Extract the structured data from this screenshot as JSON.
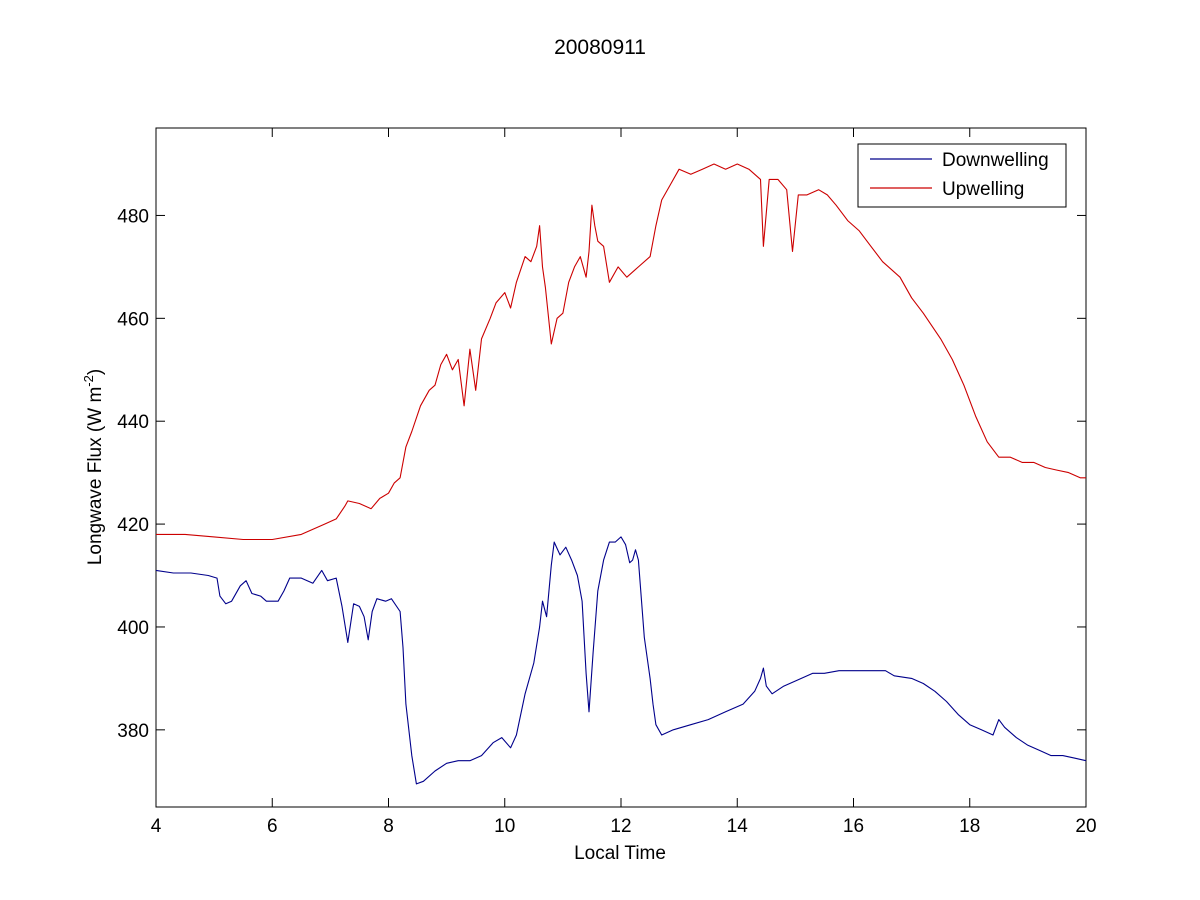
{
  "chart_data": {
    "type": "line",
    "title": "20080911",
    "xlabel": "Local Time",
    "ylabel_main": "Longwave Flux (W m",
    "ylabel_sup": "-2",
    "ylabel_close": ")",
    "xlim": [
      4,
      20
    ],
    "ylim": [
      365,
      497
    ],
    "xticks": [
      4,
      6,
      8,
      10,
      12,
      14,
      16,
      18,
      20
    ],
    "yticks": [
      380,
      400,
      420,
      440,
      460,
      480
    ],
    "grid": false,
    "legend_position": "top-right",
    "series": [
      {
        "name": "Downwelling",
        "color": "#00008b",
        "points": [
          [
            4.0,
            411
          ],
          [
            4.3,
            410.5
          ],
          [
            4.6,
            410.5
          ],
          [
            4.9,
            410
          ],
          [
            5.05,
            409.5
          ],
          [
            5.1,
            406
          ],
          [
            5.2,
            404.5
          ],
          [
            5.3,
            405
          ],
          [
            5.45,
            408
          ],
          [
            5.55,
            409
          ],
          [
            5.65,
            406.5
          ],
          [
            5.8,
            406
          ],
          [
            5.9,
            405
          ],
          [
            6.1,
            405
          ],
          [
            6.2,
            407
          ],
          [
            6.3,
            409.5
          ],
          [
            6.5,
            409.5
          ],
          [
            6.7,
            408.5
          ],
          [
            6.85,
            411
          ],
          [
            6.95,
            409
          ],
          [
            7.1,
            409.5
          ],
          [
            7.2,
            404
          ],
          [
            7.3,
            397
          ],
          [
            7.4,
            404.5
          ],
          [
            7.5,
            404
          ],
          [
            7.58,
            402
          ],
          [
            7.65,
            397.5
          ],
          [
            7.72,
            403
          ],
          [
            7.8,
            405.5
          ],
          [
            7.95,
            405
          ],
          [
            8.05,
            405.5
          ],
          [
            8.2,
            403
          ],
          [
            8.25,
            396
          ],
          [
            8.3,
            385
          ],
          [
            8.4,
            375
          ],
          [
            8.48,
            369.5
          ],
          [
            8.6,
            370
          ],
          [
            8.8,
            372
          ],
          [
            9.0,
            373.5
          ],
          [
            9.2,
            374
          ],
          [
            9.4,
            374
          ],
          [
            9.6,
            375
          ],
          [
            9.8,
            377.5
          ],
          [
            9.95,
            378.5
          ],
          [
            10.1,
            376.5
          ],
          [
            10.2,
            379
          ],
          [
            10.35,
            387
          ],
          [
            10.5,
            393
          ],
          [
            10.6,
            400
          ],
          [
            10.65,
            405
          ],
          [
            10.72,
            402
          ],
          [
            10.8,
            412
          ],
          [
            10.85,
            416.5
          ],
          [
            10.95,
            414
          ],
          [
            11.05,
            415.5
          ],
          [
            11.15,
            413
          ],
          [
            11.25,
            410
          ],
          [
            11.33,
            405
          ],
          [
            11.4,
            391
          ],
          [
            11.45,
            383.5
          ],
          [
            11.52,
            395
          ],
          [
            11.6,
            407
          ],
          [
            11.7,
            413
          ],
          [
            11.8,
            416.5
          ],
          [
            11.9,
            416.5
          ],
          [
            12.0,
            417.5
          ],
          [
            12.08,
            416
          ],
          [
            12.15,
            412.5
          ],
          [
            12.2,
            413
          ],
          [
            12.25,
            415
          ],
          [
            12.3,
            413
          ],
          [
            12.4,
            398
          ],
          [
            12.5,
            390
          ],
          [
            12.55,
            385
          ],
          [
            12.6,
            381
          ],
          [
            12.7,
            379
          ],
          [
            12.9,
            380
          ],
          [
            13.2,
            381
          ],
          [
            13.5,
            382
          ],
          [
            13.8,
            383.5
          ],
          [
            14.1,
            385
          ],
          [
            14.3,
            387.5
          ],
          [
            14.4,
            390
          ],
          [
            14.45,
            392
          ],
          [
            14.5,
            388.5
          ],
          [
            14.6,
            387
          ],
          [
            14.8,
            388.5
          ],
          [
            15.0,
            389.5
          ],
          [
            15.3,
            391
          ],
          [
            15.5,
            391
          ],
          [
            15.75,
            391.5
          ],
          [
            16.0,
            391.5
          ],
          [
            16.3,
            391.5
          ],
          [
            16.55,
            391.5
          ],
          [
            16.7,
            390.5
          ],
          [
            17.0,
            390
          ],
          [
            17.2,
            389
          ],
          [
            17.4,
            387.5
          ],
          [
            17.6,
            385.5
          ],
          [
            17.8,
            383
          ],
          [
            18.0,
            381
          ],
          [
            18.2,
            380
          ],
          [
            18.4,
            379
          ],
          [
            18.5,
            382
          ],
          [
            18.6,
            380.5
          ],
          [
            18.8,
            378.5
          ],
          [
            19.0,
            377
          ],
          [
            19.2,
            376
          ],
          [
            19.4,
            375
          ],
          [
            19.6,
            375
          ],
          [
            19.8,
            374.5
          ],
          [
            20.0,
            374
          ]
        ]
      },
      {
        "name": "Upwelling",
        "color": "#cc0000",
        "points": [
          [
            4.0,
            418
          ],
          [
            4.5,
            418
          ],
          [
            5.0,
            417.5
          ],
          [
            5.5,
            417
          ],
          [
            6.0,
            417
          ],
          [
            6.5,
            418
          ],
          [
            6.9,
            420
          ],
          [
            7.1,
            421
          ],
          [
            7.25,
            423.5
          ],
          [
            7.3,
            424.5
          ],
          [
            7.5,
            424
          ],
          [
            7.7,
            423
          ],
          [
            7.85,
            425
          ],
          [
            8.0,
            426
          ],
          [
            8.1,
            428
          ],
          [
            8.2,
            429
          ],
          [
            8.3,
            435
          ],
          [
            8.4,
            438
          ],
          [
            8.55,
            443
          ],
          [
            8.7,
            446
          ],
          [
            8.8,
            447
          ],
          [
            8.9,
            451
          ],
          [
            9.0,
            453
          ],
          [
            9.1,
            450
          ],
          [
            9.2,
            452
          ],
          [
            9.3,
            443
          ],
          [
            9.4,
            454
          ],
          [
            9.5,
            446
          ],
          [
            9.6,
            456
          ],
          [
            9.75,
            460
          ],
          [
            9.85,
            463
          ],
          [
            10.0,
            465
          ],
          [
            10.1,
            462
          ],
          [
            10.2,
            467
          ],
          [
            10.35,
            472
          ],
          [
            10.45,
            471
          ],
          [
            10.55,
            474
          ],
          [
            10.6,
            478
          ],
          [
            10.65,
            470
          ],
          [
            10.7,
            466
          ],
          [
            10.8,
            455
          ],
          [
            10.9,
            460
          ],
          [
            11.0,
            461
          ],
          [
            11.1,
            467
          ],
          [
            11.2,
            470
          ],
          [
            11.3,
            472
          ],
          [
            11.4,
            468
          ],
          [
            11.45,
            473
          ],
          [
            11.5,
            482
          ],
          [
            11.55,
            478
          ],
          [
            11.6,
            475
          ],
          [
            11.7,
            474
          ],
          [
            11.8,
            467
          ],
          [
            11.95,
            470
          ],
          [
            12.1,
            468
          ],
          [
            12.3,
            470
          ],
          [
            12.5,
            472
          ],
          [
            12.6,
            478
          ],
          [
            12.7,
            483
          ],
          [
            12.85,
            486
          ],
          [
            13.0,
            489
          ],
          [
            13.2,
            488
          ],
          [
            13.4,
            489
          ],
          [
            13.6,
            490
          ],
          [
            13.8,
            489
          ],
          [
            14.0,
            490
          ],
          [
            14.2,
            489
          ],
          [
            14.4,
            487
          ],
          [
            14.45,
            474
          ],
          [
            14.55,
            487
          ],
          [
            14.7,
            487
          ],
          [
            14.85,
            485
          ],
          [
            14.95,
            473
          ],
          [
            15.05,
            484
          ],
          [
            15.2,
            484
          ],
          [
            15.4,
            485
          ],
          [
            15.55,
            484
          ],
          [
            15.7,
            482
          ],
          [
            15.9,
            479
          ],
          [
            16.1,
            477
          ],
          [
            16.3,
            474
          ],
          [
            16.5,
            471
          ],
          [
            16.8,
            468
          ],
          [
            17.0,
            464
          ],
          [
            17.2,
            461
          ],
          [
            17.5,
            456
          ],
          [
            17.7,
            452
          ],
          [
            17.9,
            447
          ],
          [
            18.1,
            441
          ],
          [
            18.3,
            436
          ],
          [
            18.5,
            433
          ],
          [
            18.7,
            433
          ],
          [
            18.9,
            432
          ],
          [
            19.1,
            432
          ],
          [
            19.3,
            431
          ],
          [
            19.5,
            430.5
          ],
          [
            19.7,
            430
          ],
          [
            19.9,
            429
          ],
          [
            20.0,
            429
          ]
        ]
      }
    ]
  }
}
